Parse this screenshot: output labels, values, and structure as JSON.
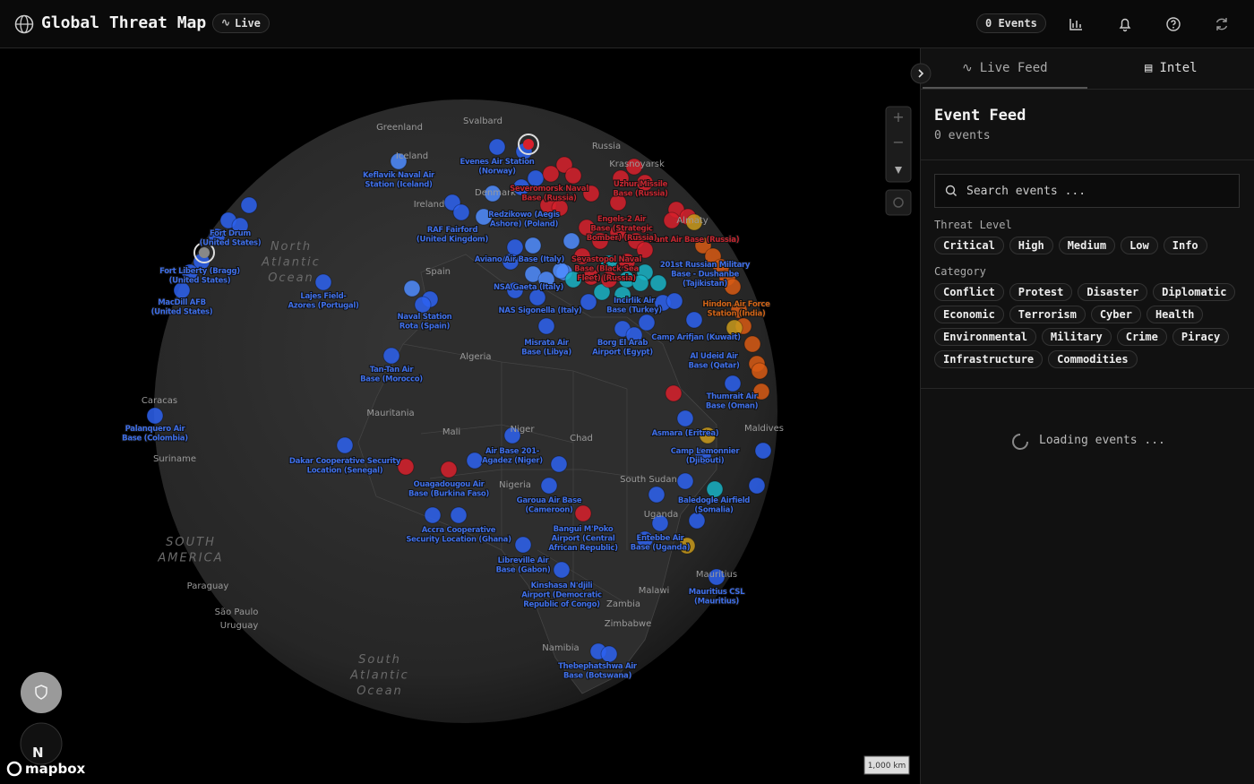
{
  "header": {
    "title": "Global Threat Map",
    "live": "Live",
    "events": "0 Events"
  },
  "sidebar": {
    "tabs": [
      "Live Feed",
      "Intel"
    ],
    "feed_title": "Event Feed",
    "feed_count": "0 events",
    "search_placeholder": "Search events ...",
    "threat_level_label": "Threat Level",
    "threat_levels": [
      "Critical",
      "High",
      "Medium",
      "Low",
      "Info"
    ],
    "category_label": "Category",
    "categories": [
      "Conflict",
      "Protest",
      "Disaster",
      "Diplomatic",
      "Economic",
      "Terrorism",
      "Cyber",
      "Health",
      "Environmental",
      "Military",
      "Crime",
      "Piracy",
      "Infrastructure",
      "Commodities"
    ],
    "loading": "Loading events ..."
  },
  "map": {
    "scale": "1,000 km",
    "attribution": "mapbox",
    "compass": "N",
    "geo_labels": [
      "Greenland",
      "Svalbard",
      "Russia",
      "Iceland",
      "Ireland",
      "Denmark",
      "Spain",
      "Algeria",
      "Mauritania",
      "Mali",
      "Niger",
      "Chad",
      "Nigeria",
      "South Sudan",
      "Uganda",
      "Zambia",
      "Malawi",
      "Zimbabwe",
      "Namibia",
      "Maldives",
      "Mauritius",
      "Caracas",
      "Suriname",
      "Paraguay",
      "São Paulo",
      "Uruguay",
      "Krasnoyarsk",
      "Almaty"
    ],
    "region_labels": [
      [
        "North",
        "Atlantic",
        "Ocean"
      ],
      [
        "South",
        "Atlantic",
        "Ocean"
      ],
      [
        "SOUTH",
        "AMERICA"
      ]
    ],
    "base_labels": [
      [
        "Evenes Air Station",
        "(Norway)"
      ],
      [
        "Keflavik Naval Air",
        "Station (Iceland)"
      ],
      [
        "Fort Drum",
        "(United States)"
      ],
      [
        "Fort Liberty (Bragg)",
        "(United States)"
      ],
      [
        "MacDill AFB",
        "(United States)"
      ],
      [
        "Lajes Field-",
        "Azores (Portugal)"
      ],
      [
        "RAF Fairford",
        "(United Kingdom)"
      ],
      [
        "Redzikowo (Aegis",
        "Ashore) (Poland)"
      ],
      [
        "Aviano Air Base (Italy)"
      ],
      [
        "NSA Gaeta (Italy)"
      ],
      [
        "NAS Sigonella (Italy)"
      ],
      [
        "Naval Station",
        "Rota (Spain)"
      ],
      [
        "Tan-Tan Air",
        "Base (Morocco)"
      ],
      [
        "Misrata Air",
        "Base (Libya)"
      ],
      [
        "Borg El Arab",
        "Airport (Egypt)"
      ],
      [
        "Incirlik Air",
        "Base (Turkey)"
      ],
      [
        "Camp Arifjan (Kuwait)"
      ],
      [
        "Al Udeid Air",
        "Base (Qatar)"
      ],
      [
        "Hindon Air Force",
        "Station (India)"
      ],
      [
        "201st Russian Military",
        "Base - Dushanbe",
        "(Tajikistan)"
      ],
      [
        "Kant Air Base (Russia)"
      ],
      [
        "Engels-2 Air",
        "Base (Strategic",
        "Bomber) (Russia)"
      ],
      [
        "Uzhur Missile",
        "Base (Russia)"
      ],
      [
        "Severomorsk Naval",
        "Base (Russia)"
      ],
      [
        "Sevastopol Naval",
        "Base (Black Sea",
        "Fleet) (Russia)"
      ],
      [
        "Thumrait Air",
        "Base (Oman)"
      ],
      [
        "Asmara (Eritrea)"
      ],
      [
        "Camp Lemonnier",
        "(Djibouti)"
      ],
      [
        "Baledogle Airfield",
        "(Somalia)"
      ],
      [
        "Entebbe Air",
        "Base (Uganda)"
      ],
      [
        "Mauritius CSL",
        "(Mauritius)"
      ],
      [
        "Thebephatshwa Air",
        "Base (Botswana)"
      ],
      [
        "Kinshasa N'djili",
        "Airport (Democratic",
        "Republic of Congo)"
      ],
      [
        "Libreville Air",
        "Base (Gabon)"
      ],
      [
        "Bangui M'Poko",
        "Airport (Central",
        "African Republic)"
      ],
      [
        "Garoua Air Base",
        "(Cameroon)"
      ],
      [
        "Accra Cooperative",
        "Security Location (Ghana)"
      ],
      [
        "Ouagadougou Air",
        "Base (Burkina Faso)"
      ],
      [
        "Air Base 201-",
        "Agadez (Niger)"
      ],
      [
        "Dakar Cooperative Security",
        "Location (Senegal)"
      ],
      [
        "Palanquero Air",
        "Base (Colombia)"
      ]
    ]
  }
}
